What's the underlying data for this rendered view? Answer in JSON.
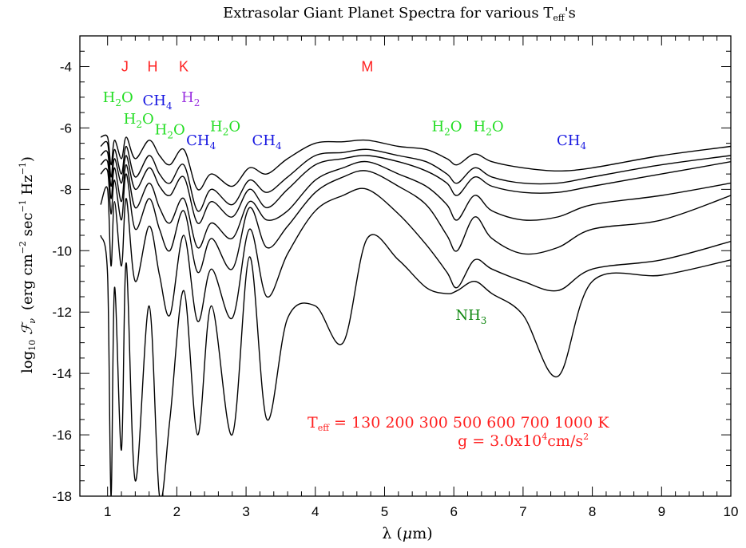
{
  "chart_data": {
    "type": "line",
    "title": {
      "main": "Extrasolar Giant Planet Spectra for various T",
      "sub": "eff",
      "tail": "'s"
    },
    "xlabel": {
      "pre": "λ (",
      "mu": "μ",
      "post": "m)"
    },
    "ylabel": {
      "log": "log",
      "log_sub": "10",
      "F": "ℱ",
      "F_sub": "ν",
      "units_a": "(erg cm",
      "exp1": "−2",
      "units_b": " sec",
      "exp2": "−1",
      "units_c": " Hz",
      "exp3": "−1",
      "units_d": ")"
    },
    "xlim": [
      0.6,
      10
    ],
    "ylim": [
      -18,
      -3
    ],
    "xticks": [
      1,
      2,
      3,
      4,
      5,
      6,
      7,
      8,
      9,
      10
    ],
    "xtick_labels": [
      "1",
      "2",
      "3",
      "4",
      "5",
      "6",
      "7",
      "8",
      "9",
      "10"
    ],
    "yticks": [
      -18,
      -16,
      -14,
      -12,
      -10,
      -8,
      -6,
      -4
    ],
    "ytick_labels": [
      "-18",
      "-16",
      "-14",
      "-12",
      "-10",
      "-8",
      "-6",
      "-4"
    ],
    "grid": false,
    "colors": {
      "line": "#000000",
      "band": "#ff2020",
      "h2o": "#22dd22",
      "ch4": "#1515e0",
      "h2": "#9a30e0",
      "nh3": "#118811",
      "teff": "#ff2020"
    },
    "bands": [
      {
        "label": "J",
        "x": 1.25,
        "y": -4.0
      },
      {
        "label": "H",
        "x": 1.65,
        "y": -4.0
      },
      {
        "label": "K",
        "x": 2.1,
        "y": -4.0
      },
      {
        "label": "M",
        "x": 4.75,
        "y": -4.0
      }
    ],
    "molecules": [
      {
        "kind": "h2o",
        "base": "H",
        "sub": "2",
        "tail": "O",
        "x": 1.15,
        "y": -5.0
      },
      {
        "kind": "h2o",
        "base": "H",
        "sub": "2",
        "tail": "O",
        "x": 1.45,
        "y": -5.7
      },
      {
        "kind": "h2o",
        "base": "H",
        "sub": "2",
        "tail": "O",
        "x": 1.9,
        "y": -6.05
      },
      {
        "kind": "h2o",
        "base": "H",
        "sub": "2",
        "tail": "O",
        "x": 2.7,
        "y": -5.95
      },
      {
        "kind": "h2o",
        "base": "H",
        "sub": "2",
        "tail": "O",
        "x": 5.9,
        "y": -5.95
      },
      {
        "kind": "h2o",
        "base": "H",
        "sub": "2",
        "tail": "O",
        "x": 6.5,
        "y": -5.95
      },
      {
        "kind": "ch4",
        "base": "CH",
        "sub": "4",
        "tail": "",
        "x": 1.72,
        "y": -5.1
      },
      {
        "kind": "ch4",
        "base": "CH",
        "sub": "4",
        "tail": "",
        "x": 2.35,
        "y": -6.4
      },
      {
        "kind": "ch4",
        "base": "CH",
        "sub": "4",
        "tail": "",
        "x": 3.3,
        "y": -6.4
      },
      {
        "kind": "ch4",
        "base": "CH",
        "sub": "4",
        "tail": "",
        "x": 7.7,
        "y": -6.4
      },
      {
        "kind": "h2",
        "base": "H",
        "sub": "2",
        "tail": "",
        "x": 2.2,
        "y": -5.0
      },
      {
        "kind": "nh3",
        "base": "NH",
        "sub": "3",
        "tail": "",
        "x": 6.25,
        "y": -12.1
      }
    ],
    "annotation": {
      "teff_T": "T",
      "teff_sub": "eff",
      "teff_rest": " = 130 200 300 500 600 700 1000 K",
      "g_pre": "g = 3.0x10",
      "g_exp": "4",
      "g_mid": "cm/s",
      "g_exp2": "2"
    },
    "series": [
      {
        "x": [
          0.9,
          1.0,
          1.05,
          1.1,
          1.2,
          1.27,
          1.4,
          1.6,
          1.75,
          1.9,
          2.1,
          2.3,
          2.5,
          2.8,
          3.05,
          3.3,
          3.6,
          4.0,
          4.4,
          4.75,
          5.2,
          5.6,
          5.9,
          6.05,
          6.3,
          6.55,
          7.0,
          7.5,
          8.0,
          9.0,
          10.0
        ],
        "y": [
          -6.3,
          -6.3,
          -7.2,
          -6.4,
          -7.0,
          -6.3,
          -7.0,
          -6.4,
          -6.9,
          -7.2,
          -6.7,
          -8.0,
          -7.5,
          -7.9,
          -7.3,
          -7.5,
          -7.0,
          -6.5,
          -6.45,
          -6.4,
          -6.6,
          -6.7,
          -7.0,
          -7.2,
          -6.85,
          -7.1,
          -7.3,
          -7.4,
          -7.3,
          -6.9,
          -6.6
        ]
      },
      {
        "x": [
          0.9,
          1.0,
          1.05,
          1.1,
          1.2,
          1.27,
          1.4,
          1.6,
          1.75,
          1.9,
          2.1,
          2.3,
          2.5,
          2.8,
          3.05,
          3.3,
          3.6,
          4.0,
          4.4,
          4.75,
          5.2,
          5.6,
          5.9,
          6.05,
          6.3,
          6.55,
          7.0,
          7.5,
          8.0,
          9.0,
          10.0
        ],
        "y": [
          -6.6,
          -6.5,
          -7.6,
          -6.7,
          -7.5,
          -6.6,
          -7.6,
          -6.9,
          -7.5,
          -7.8,
          -7.2,
          -8.7,
          -8.0,
          -8.5,
          -7.7,
          -8.1,
          -7.6,
          -6.9,
          -6.8,
          -6.7,
          -6.9,
          -7.1,
          -7.5,
          -7.8,
          -7.3,
          -7.6,
          -7.8,
          -7.8,
          -7.6,
          -7.2,
          -6.9
        ]
      },
      {
        "x": [
          0.9,
          1.0,
          1.05,
          1.1,
          1.2,
          1.27,
          1.4,
          1.6,
          1.75,
          1.9,
          2.1,
          2.3,
          2.5,
          2.8,
          3.05,
          3.3,
          3.6,
          4.0,
          4.4,
          4.75,
          5.2,
          5.6,
          5.9,
          6.05,
          6.3,
          6.55,
          7.0,
          7.5,
          8.0,
          9.0,
          10.0
        ],
        "y": [
          -6.9,
          -6.8,
          -7.9,
          -7.0,
          -7.8,
          -6.9,
          -8.0,
          -7.3,
          -7.9,
          -8.2,
          -7.6,
          -9.1,
          -8.4,
          -8.9,
          -8.0,
          -8.6,
          -8.0,
          -7.2,
          -7.0,
          -6.9,
          -7.1,
          -7.4,
          -7.8,
          -8.2,
          -7.6,
          -7.9,
          -8.1,
          -8.1,
          -7.9,
          -7.5,
          -7.1
        ]
      },
      {
        "x": [
          0.9,
          1.0,
          1.05,
          1.1,
          1.2,
          1.27,
          1.4,
          1.6,
          1.75,
          1.9,
          2.1,
          2.3,
          2.5,
          2.8,
          3.05,
          3.3,
          3.6,
          4.0,
          4.4,
          4.75,
          5.2,
          5.6,
          5.9,
          6.05,
          6.3,
          6.55,
          7.0,
          7.5,
          8.0,
          9.0,
          10.0
        ],
        "y": [
          -7.2,
          -7.1,
          -8.3,
          -7.3,
          -8.4,
          -7.2,
          -8.6,
          -7.8,
          -8.6,
          -9.1,
          -8.3,
          -9.9,
          -9.1,
          -9.6,
          -8.4,
          -9.0,
          -8.7,
          -7.7,
          -7.3,
          -7.1,
          -7.5,
          -7.9,
          -8.5,
          -9.0,
          -8.2,
          -8.7,
          -9.0,
          -8.9,
          -8.5,
          -8.2,
          -7.8
        ]
      },
      {
        "x": [
          0.9,
          1.0,
          1.05,
          1.1,
          1.2,
          1.27,
          1.4,
          1.6,
          1.75,
          1.9,
          2.1,
          2.3,
          2.5,
          2.8,
          3.05,
          3.3,
          3.6,
          4.0,
          4.4,
          4.75,
          5.2,
          5.6,
          5.9,
          6.05,
          6.3,
          6.55,
          7.0,
          7.5,
          8.0,
          9.0,
          10.0
        ],
        "y": [
          -7.5,
          -7.4,
          -8.8,
          -7.7,
          -9.0,
          -7.5,
          -9.3,
          -8.3,
          -9.3,
          -10.0,
          -8.7,
          -10.7,
          -9.6,
          -10.6,
          -8.6,
          -9.9,
          -9.2,
          -8.1,
          -7.6,
          -7.4,
          -7.9,
          -8.5,
          -9.5,
          -10.0,
          -8.9,
          -9.6,
          -10.1,
          -9.9,
          -9.3,
          -9.0,
          -8.2
        ]
      },
      {
        "x": [
          0.9,
          1.0,
          1.05,
          1.1,
          1.2,
          1.27,
          1.4,
          1.6,
          1.75,
          1.9,
          2.1,
          2.3,
          2.5,
          2.8,
          3.05,
          3.3,
          3.6,
          4.0,
          4.4,
          4.75,
          5.2,
          5.6,
          5.9,
          6.05,
          6.3,
          6.55,
          7.0,
          7.5,
          8.0,
          9.0,
          10.0
        ],
        "y": [
          -8.5,
          -8.0,
          -10.5,
          -8.4,
          -10.5,
          -8.3,
          -11.0,
          -9.2,
          -10.8,
          -12.1,
          -9.5,
          -12.3,
          -10.6,
          -12.2,
          -9.3,
          -11.5,
          -10.1,
          -8.7,
          -8.2,
          -8.0,
          -8.8,
          -9.8,
          -10.7,
          -11.2,
          -10.3,
          -10.6,
          -11.0,
          -11.3,
          -10.6,
          -10.3,
          -9.7
        ]
      },
      {
        "x": [
          0.9,
          1.0,
          1.05,
          1.1,
          1.2,
          1.27,
          1.4,
          1.6,
          1.75,
          1.9,
          2.1,
          2.3,
          2.5,
          2.8,
          3.05,
          3.3,
          3.6,
          4.0,
          4.4,
          4.75,
          5.2,
          5.6,
          5.9,
          6.05,
          6.3,
          6.55,
          7.0,
          7.5,
          8.0,
          9.0,
          10.0
        ],
        "y": [
          -9.5,
          -10.8,
          -18.0,
          -11.2,
          -16.5,
          -10.4,
          -17.5,
          -11.8,
          -18.0,
          -15.5,
          -11.3,
          -16.0,
          -11.8,
          -16.0,
          -10.2,
          -15.5,
          -12.2,
          -11.8,
          -13.0,
          -9.6,
          -10.3,
          -11.2,
          -11.4,
          -11.3,
          -11.0,
          -11.4,
          -12.1,
          -14.1,
          -11.0,
          -10.8,
          -10.3
        ]
      }
    ]
  }
}
